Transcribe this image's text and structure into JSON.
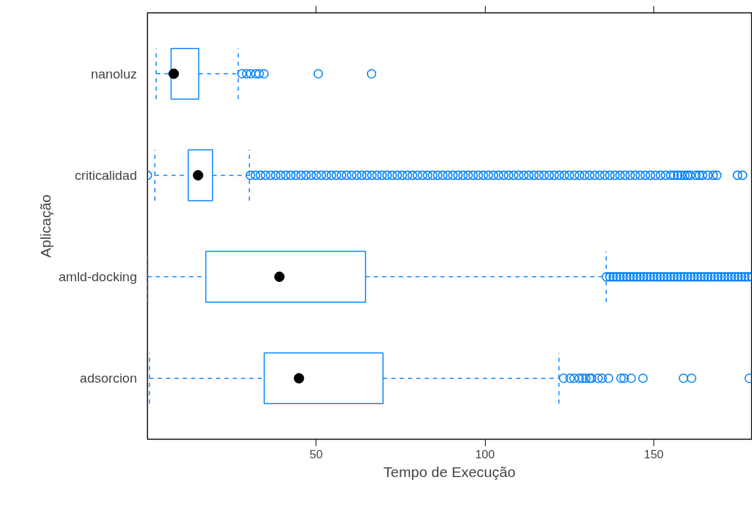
{
  "chart_data": {
    "type": "box",
    "orientation": "horizontal",
    "xlabel": "Tempo de Execução",
    "ylabel": "Aplicação",
    "categories": [
      "nanoluz",
      "criticalidad",
      "amld-docking",
      "adsorcion"
    ],
    "color": "#0080ff",
    "grid": false,
    "xlim": [
      0,
      179
    ],
    "xticks": [
      50,
      100,
      150
    ],
    "boxes": [
      {
        "low": 2.6,
        "q1": 7.0,
        "median": 7.8,
        "q3": 15.2,
        "high": 26.9,
        "outliers": [
          28.0,
          29.4,
          30.6,
          32.1,
          33.1,
          34.5,
          50.6,
          66.4
        ]
      },
      {
        "low": 2.2,
        "q1": 12.1,
        "median": 15.0,
        "q3": 19.3,
        "high": 30.2,
        "outliers": [
          0.0,
          30.5,
          32,
          33.5,
          35,
          36.5,
          38,
          39.5,
          41,
          42.5,
          44,
          45.5,
          47,
          48.5,
          50,
          51.5,
          53,
          54.5,
          56,
          57.5,
          59,
          60.5,
          62,
          63.5,
          65,
          66.5,
          68,
          69.5,
          71,
          72.5,
          74,
          75.5,
          77,
          78.5,
          80,
          81.5,
          83,
          84.5,
          86,
          87.5,
          89,
          90.5,
          92,
          93.5,
          95,
          96.5,
          98,
          99.5,
          101,
          102.5,
          104,
          105.5,
          107,
          108.5,
          110,
          111.5,
          113,
          114.5,
          116,
          117.5,
          119,
          120.5,
          122,
          123.5,
          125,
          126.5,
          128,
          129.5,
          131,
          132.5,
          134,
          135.5,
          137,
          138.5,
          140,
          141.5,
          143,
          144.5,
          146,
          147.5,
          149,
          150.5,
          152,
          153.5,
          155,
          156,
          157.1,
          158.1,
          159.2,
          160.0,
          160.8,
          162.5,
          163.5,
          164.4,
          166.0,
          167.6,
          168.7,
          174.8,
          176.3
        ]
      },
      {
        "low": 0.0,
        "q1": 17.3,
        "median": 39.1,
        "q3": 64.6,
        "high": 135.9,
        "outliers": [
          136,
          137,
          138,
          139,
          140,
          141,
          142,
          143,
          144,
          145,
          146,
          147,
          148,
          149,
          150,
          151,
          152,
          153,
          154,
          155,
          156,
          157,
          158,
          159,
          160,
          161,
          162,
          163,
          164,
          165,
          166,
          167,
          168,
          169,
          170,
          171,
          172,
          173,
          174,
          175,
          176,
          177,
          178,
          179
        ]
      },
      {
        "low": 0.6,
        "q1": 34.6,
        "median": 44.9,
        "q3": 69.8,
        "high": 121.9,
        "outliers": [
          123.3,
          125.2,
          126.4,
          127.9,
          128.9,
          129.9,
          131.0,
          131.6,
          133.5,
          134.7,
          136.6,
          140.3,
          141.2,
          143.3,
          146.8,
          158.8,
          161.2,
          178.3
        ]
      }
    ]
  }
}
